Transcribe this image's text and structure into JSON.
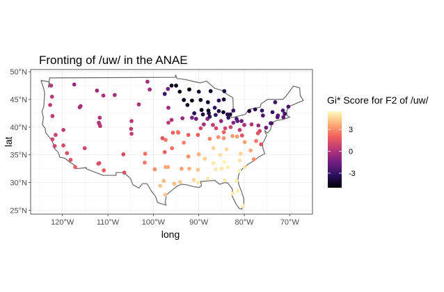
{
  "chart_data": {
    "type": "scatter",
    "title": "Fronting of /uw/ in the ANAE",
    "xlabel": "long",
    "ylabel": "lat",
    "xlim": [
      -127,
      -65
    ],
    "ylim": [
      24.3,
      50.4
    ],
    "x_ticks": [
      -120,
      -110,
      -100,
      -90,
      -80,
      -70
    ],
    "x_tick_labels": [
      "120°W",
      "110°W",
      "100°W",
      "90°W",
      "80°W",
      "70°W"
    ],
    "y_ticks": [
      25,
      30,
      35,
      40,
      45,
      50
    ],
    "y_tick_labels": [
      "25°N",
      "30°N",
      "35°N",
      "40°N",
      "45°N",
      "50°N"
    ],
    "grid": true,
    "legend": {
      "title": "Gi* Score for F2 of /uw/",
      "placement": "right",
      "ticks": [
        3,
        0,
        -3
      ],
      "tick_labels": [
        "3",
        "0",
        "-3"
      ],
      "range": [
        -5,
        5.5
      ],
      "colors": [
        "#000004",
        "#2c115f",
        "#721f81",
        "#b73779",
        "#f1605d",
        "#feb078",
        "#fcfdbf"
      ]
    },
    "points": [
      {
        "x": -122.5,
        "y": 47.5,
        "v": 0.3
      },
      {
        "x": -122.3,
        "y": 45.5,
        "v": 0.3
      },
      {
        "x": -122.7,
        "y": 44.0,
        "v": 0.5
      },
      {
        "x": -122.2,
        "y": 42.0,
        "v": 0.4
      },
      {
        "x": -121.5,
        "y": 38.6,
        "v": 0.8
      },
      {
        "x": -122.2,
        "y": 37.8,
        "v": 1.0
      },
      {
        "x": -121.7,
        "y": 36.6,
        "v": 1.0
      },
      {
        "x": -119.8,
        "y": 36.7,
        "v": 1.2
      },
      {
        "x": -119.0,
        "y": 35.3,
        "v": 1.3
      },
      {
        "x": -118.2,
        "y": 34.1,
        "v": 1.5
      },
      {
        "x": -117.2,
        "y": 32.8,
        "v": 1.8
      },
      {
        "x": -117.4,
        "y": 47.7,
        "v": -0.5
      },
      {
        "x": -116.2,
        "y": 43.6,
        "v": -0.3
      },
      {
        "x": -116.0,
        "y": 43.8,
        "v": 0.0
      },
      {
        "x": -119.8,
        "y": 39.5,
        "v": 0.5
      },
      {
        "x": -115.1,
        "y": 36.2,
        "v": 1.0
      },
      {
        "x": -112.1,
        "y": 33.4,
        "v": 1.4
      },
      {
        "x": -111.9,
        "y": 33.5,
        "v": 1.3
      },
      {
        "x": -110.9,
        "y": 32.2,
        "v": 1.8
      },
      {
        "x": -112.0,
        "y": 40.8,
        "v": 0.0
      },
      {
        "x": -111.9,
        "y": 40.6,
        "v": 0.2
      },
      {
        "x": -111.8,
        "y": 41.7,
        "v": 0.1
      },
      {
        "x": -111.7,
        "y": 40.2,
        "v": 0.3
      },
      {
        "x": -112.4,
        "y": 46.6,
        "v": -0.5
      },
      {
        "x": -111.0,
        "y": 45.7,
        "v": 0.0
      },
      {
        "x": -108.5,
        "y": 45.8,
        "v": -0.2
      },
      {
        "x": -106.6,
        "y": 35.1,
        "v": 1.2
      },
      {
        "x": -106.4,
        "y": 31.8,
        "v": 1.4
      },
      {
        "x": -104.9,
        "y": 39.7,
        "v": 0.5
      },
      {
        "x": -104.8,
        "y": 38.8,
        "v": 0.6
      },
      {
        "x": -104.8,
        "y": 41.1,
        "v": 0.3
      },
      {
        "x": -103.2,
        "y": 44.1,
        "v": 0.0
      },
      {
        "x": -100.8,
        "y": 46.8,
        "v": -0.3
      },
      {
        "x": -101.3,
        "y": 48.2,
        "v": -0.2
      },
      {
        "x": -96.8,
        "y": 46.9,
        "v": -1.5
      },
      {
        "x": -96.7,
        "y": 43.5,
        "v": -0.5
      },
      {
        "x": -98.0,
        "y": 38.0,
        "v": 1.5
      },
      {
        "x": -97.3,
        "y": 37.7,
        "v": 2.5
      },
      {
        "x": -97.5,
        "y": 35.5,
        "v": 2.0
      },
      {
        "x": -95.9,
        "y": 36.2,
        "v": 2.4
      },
      {
        "x": -101.8,
        "y": 35.2,
        "v": 2.3
      },
      {
        "x": -101.9,
        "y": 33.6,
        "v": 2.5
      },
      {
        "x": -99.7,
        "y": 32.4,
        "v": 3.0
      },
      {
        "x": -97.3,
        "y": 32.8,
        "v": 3.5
      },
      {
        "x": -96.8,
        "y": 32.8,
        "v": 3.6
      },
      {
        "x": -98.5,
        "y": 29.4,
        "v": 4.2
      },
      {
        "x": -97.7,
        "y": 30.3,
        "v": 4.0
      },
      {
        "x": -95.4,
        "y": 29.8,
        "v": 4.1
      },
      {
        "x": -94.1,
        "y": 30.1,
        "v": 4.4
      },
      {
        "x": -97.4,
        "y": 27.8,
        "v": 4.3
      },
      {
        "x": -93.8,
        "y": 32.5,
        "v": 3.4
      },
      {
        "x": -92.1,
        "y": 32.5,
        "v": 3.8
      },
      {
        "x": -91.1,
        "y": 30.5,
        "v": 4.6
      },
      {
        "x": -90.1,
        "y": 30.0,
        "v": 5.0
      },
      {
        "x": -88.0,
        "y": 30.7,
        "v": 5.1
      },
      {
        "x": -92.3,
        "y": 34.7,
        "v": 3.0
      },
      {
        "x": -90.0,
        "y": 35.1,
        "v": 3.8
      },
      {
        "x": -90.2,
        "y": 32.3,
        "v": 4.3
      },
      {
        "x": -88.7,
        "y": 34.3,
        "v": 4.5
      },
      {
        "x": -86.8,
        "y": 33.5,
        "v": 5.0
      },
      {
        "x": -86.3,
        "y": 32.4,
        "v": 5.0
      },
      {
        "x": -85.3,
        "y": 35.0,
        "v": 4.8
      },
      {
        "x": -86.8,
        "y": 36.2,
        "v": 4.6
      },
      {
        "x": -83.9,
        "y": 36.0,
        "v": 4.7
      },
      {
        "x": -84.4,
        "y": 33.7,
        "v": 5.3
      },
      {
        "x": -85.0,
        "y": 32.5,
        "v": 5.0
      },
      {
        "x": -83.6,
        "y": 32.8,
        "v": 5.2
      },
      {
        "x": -81.1,
        "y": 32.1,
        "v": 5.3
      },
      {
        "x": -81.7,
        "y": 30.3,
        "v": 5.1
      },
      {
        "x": -84.3,
        "y": 30.4,
        "v": 5.1
      },
      {
        "x": -82.5,
        "y": 28.0,
        "v": 5.2
      },
      {
        "x": -81.4,
        "y": 28.5,
        "v": 5.2
      },
      {
        "x": -80.2,
        "y": 25.8,
        "v": 5.2
      },
      {
        "x": -81.0,
        "y": 34.0,
        "v": 5.0
      },
      {
        "x": -79.9,
        "y": 32.8,
        "v": 4.8
      },
      {
        "x": -80.8,
        "y": 35.2,
        "v": 4.6
      },
      {
        "x": -78.6,
        "y": 35.8,
        "v": 3.6
      },
      {
        "x": -77.9,
        "y": 34.2,
        "v": 3.0
      },
      {
        "x": -76.3,
        "y": 36.9,
        "v": 1.5
      },
      {
        "x": -77.4,
        "y": 37.5,
        "v": 2.5
      },
      {
        "x": -79.9,
        "y": 37.3,
        "v": 3.5
      },
      {
        "x": -81.6,
        "y": 38.3,
        "v": 3.3
      },
      {
        "x": -82.6,
        "y": 38.4,
        "v": 3.3
      },
      {
        "x": -84.5,
        "y": 38.0,
        "v": 3.2
      },
      {
        "x": -85.7,
        "y": 38.2,
        "v": 3.0
      },
      {
        "x": -87.6,
        "y": 37.9,
        "v": 2.8
      },
      {
        "x": -89.6,
        "y": 39.8,
        "v": 1.0
      },
      {
        "x": -90.2,
        "y": 38.6,
        "v": 1.8
      },
      {
        "x": -92.3,
        "y": 38.6,
        "v": 2.0
      },
      {
        "x": -93.3,
        "y": 37.2,
        "v": 2.8
      },
      {
        "x": -94.6,
        "y": 39.1,
        "v": 2.6
      },
      {
        "x": -94.5,
        "y": 39.0,
        "v": 2.4
      },
      {
        "x": -95.7,
        "y": 39.0,
        "v": 2.0
      },
      {
        "x": -96.0,
        "y": 41.3,
        "v": 0.0
      },
      {
        "x": -96.7,
        "y": 40.8,
        "v": 0.5
      },
      {
        "x": -93.6,
        "y": 41.6,
        "v": -0.5
      },
      {
        "x": -91.5,
        "y": 41.7,
        "v": -1.2
      },
      {
        "x": -90.6,
        "y": 41.5,
        "v": -1.5
      },
      {
        "x": -88.1,
        "y": 41.5,
        "v": -1.0
      },
      {
        "x": -88.9,
        "y": 40.5,
        "v": -0.3
      },
      {
        "x": -86.2,
        "y": 39.8,
        "v": 1.0
      },
      {
        "x": -86.9,
        "y": 40.4,
        "v": 0.5
      },
      {
        "x": -85.1,
        "y": 41.1,
        "v": -1.0
      },
      {
        "x": -84.2,
        "y": 39.8,
        "v": 1.0
      },
      {
        "x": -84.5,
        "y": 39.1,
        "v": 2.0
      },
      {
        "x": -83.0,
        "y": 40.0,
        "v": 0.8
      },
      {
        "x": -81.7,
        "y": 41.5,
        "v": -2.5
      },
      {
        "x": -81.5,
        "y": 41.1,
        "v": -2.0
      },
      {
        "x": -80.6,
        "y": 41.1,
        "v": -1.8
      },
      {
        "x": -80.0,
        "y": 40.4,
        "v": 0.0
      },
      {
        "x": -78.4,
        "y": 40.5,
        "v": 0.0
      },
      {
        "x": -76.9,
        "y": 40.3,
        "v": -0.5
      },
      {
        "x": -75.2,
        "y": 39.9,
        "v": -1.5
      },
      {
        "x": -76.6,
        "y": 39.3,
        "v": 1.0
      },
      {
        "x": -77.0,
        "y": 38.9,
        "v": 1.5
      },
      {
        "x": -74.2,
        "y": 40.7,
        "v": -2.0
      },
      {
        "x": -74.0,
        "y": 40.7,
        "v": -2.5
      },
      {
        "x": -73.8,
        "y": 42.7,
        "v": -3.0
      },
      {
        "x": -76.1,
        "y": 43.0,
        "v": -3.2
      },
      {
        "x": -77.6,
        "y": 43.2,
        "v": -3.5
      },
      {
        "x": -78.9,
        "y": 42.9,
        "v": -3.8
      },
      {
        "x": -75.9,
        "y": 42.1,
        "v": -2.5
      },
      {
        "x": -72.7,
        "y": 41.8,
        "v": -2.5
      },
      {
        "x": -71.1,
        "y": 42.4,
        "v": -2.8
      },
      {
        "x": -71.4,
        "y": 41.8,
        "v": -2.0
      },
      {
        "x": -72.6,
        "y": 42.1,
        "v": -2.2
      },
      {
        "x": -73.2,
        "y": 44.5,
        "v": -3.0
      },
      {
        "x": -70.3,
        "y": 43.7,
        "v": -2.5
      },
      {
        "x": -71.5,
        "y": 43.0,
        "v": -2.5
      },
      {
        "x": -83.1,
        "y": 42.3,
        "v": -4.0
      },
      {
        "x": -83.7,
        "y": 42.3,
        "v": -3.5
      },
      {
        "x": -85.6,
        "y": 42.9,
        "v": -3.8
      },
      {
        "x": -84.6,
        "y": 42.7,
        "v": -4.2
      },
      {
        "x": -86.3,
        "y": 42.2,
        "v": -3.0
      },
      {
        "x": -87.6,
        "y": 41.9,
        "v": -3.5
      },
      {
        "x": -87.9,
        "y": 43.0,
        "v": -4.5
      },
      {
        "x": -89.4,
        "y": 43.1,
        "v": -4.6
      },
      {
        "x": -88.0,
        "y": 44.5,
        "v": -4.3
      },
      {
        "x": -89.6,
        "y": 44.9,
        "v": -4.5
      },
      {
        "x": -91.5,
        "y": 44.8,
        "v": -4.8
      },
      {
        "x": -93.3,
        "y": 44.9,
        "v": -4.7
      },
      {
        "x": -92.1,
        "y": 46.8,
        "v": -4.9
      },
      {
        "x": -92.5,
        "y": 44.0,
        "v": -4.3
      },
      {
        "x": -90.0,
        "y": 46.4,
        "v": -4.0
      },
      {
        "x": -87.4,
        "y": 46.5,
        "v": -4.2
      },
      {
        "x": -84.4,
        "y": 46.5,
        "v": -3.8
      },
      {
        "x": -84.5,
        "y": 45.0,
        "v": -4.0
      },
      {
        "x": -85.6,
        "y": 44.8,
        "v": -3.5
      },
      {
        "x": -94.2,
        "y": 46.4,
        "v": -4.5
      },
      {
        "x": -95.0,
        "y": 47.5,
        "v": -4.6
      },
      {
        "x": -96.0,
        "y": 47.5,
        "v": -4.4
      },
      {
        "x": -97.5,
        "y": 46.0,
        "v": -3.0
      },
      {
        "x": -91.0,
        "y": 42.5,
        "v": -3.5
      },
      {
        "x": -89.1,
        "y": 42.3,
        "v": -3.8
      },
      {
        "x": -87.8,
        "y": 42.5,
        "v": -3.9
      },
      {
        "x": -86.5,
        "y": 43.5,
        "v": -3.2
      },
      {
        "x": -82.4,
        "y": 43.0,
        "v": -3.0
      },
      {
        "x": -83.5,
        "y": 41.7,
        "v": -3.2
      },
      {
        "x": -81.0,
        "y": 39.5,
        "v": 0.5
      },
      {
        "x": -80.5,
        "y": 38.5,
        "v": 1.5
      },
      {
        "x": -82.4,
        "y": 40.8,
        "v": -1.0
      }
    ]
  }
}
